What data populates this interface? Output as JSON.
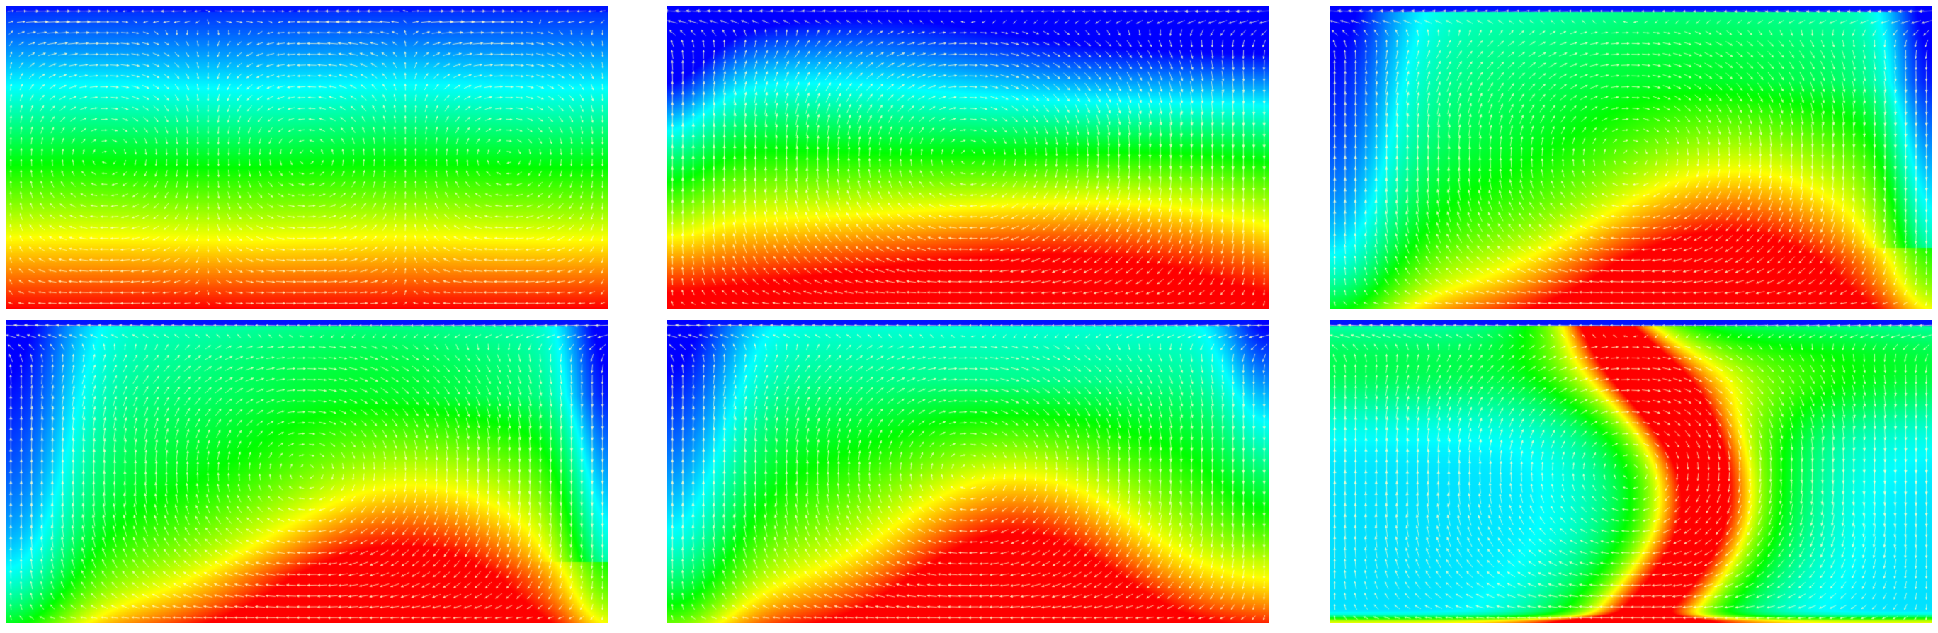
{
  "figure": {
    "panels": [
      {
        "id": "p1",
        "pattern": "stratified"
      },
      {
        "id": "p2",
        "pattern": "wavy"
      },
      {
        "id": "p3",
        "pattern": "plume-right"
      },
      {
        "id": "p4",
        "pattern": "plume-right"
      },
      {
        "id": "p5",
        "pattern": "plume-center"
      },
      {
        "id": "p6",
        "pattern": "s-plume"
      }
    ],
    "colormap": [
      "#0000ff",
      "#00ffff",
      "#00ff00",
      "#ffff00",
      "#ff0000"
    ],
    "arrow_color": "#ffffcc"
  }
}
